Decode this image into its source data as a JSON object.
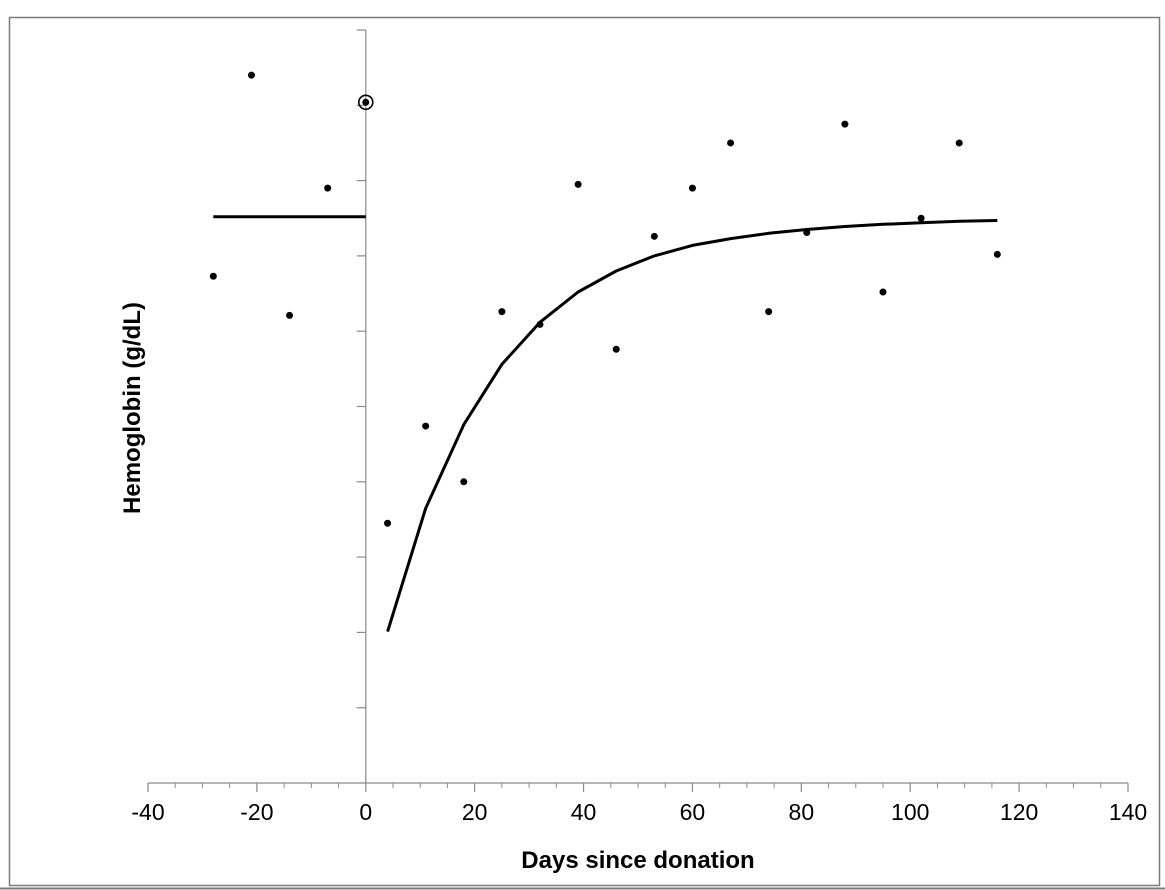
{
  "chart_data": {
    "type": "scatter",
    "title": "",
    "xlabel": "Days since donation",
    "ylabel": "Hemoglobin (g/dL)",
    "xlim": [
      -40,
      140
    ],
    "x_ticks": [
      -40,
      -20,
      0,
      20,
      40,
      60,
      80,
      100,
      120,
      140
    ],
    "y_tick_labels_shown": false,
    "y_range_relative": [
      0,
      1
    ],
    "grid": false,
    "legend": "none",
    "series": [
      {
        "kind": "points",
        "points": [
          {
            "x": -21,
            "y": 0.94
          },
          {
            "x": -28,
            "y": 0.673
          },
          {
            "x": -14,
            "y": 0.621
          },
          {
            "x": -7,
            "y": 0.79
          },
          {
            "x": 0,
            "y": 0.904,
            "circled": true
          },
          {
            "x": 4,
            "y": 0.345
          },
          {
            "x": 11,
            "y": 0.474
          },
          {
            "x": 18,
            "y": 0.4
          },
          {
            "x": 25,
            "y": 0.626
          },
          {
            "x": 32,
            "y": 0.609
          },
          {
            "x": 39,
            "y": 0.795
          },
          {
            "x": 46,
            "y": 0.576
          },
          {
            "x": 53,
            "y": 0.726
          },
          {
            "x": 60,
            "y": 0.79
          },
          {
            "x": 67,
            "y": 0.85
          },
          {
            "x": 74,
            "y": 0.626
          },
          {
            "x": 81,
            "y": 0.731
          },
          {
            "x": 88,
            "y": 0.875
          },
          {
            "x": 95,
            "y": 0.652
          },
          {
            "x": 102,
            "y": 0.75
          },
          {
            "x": 109,
            "y": 0.85
          },
          {
            "x": 116,
            "y": 0.702
          }
        ]
      },
      {
        "kind": "baseline-line",
        "points": [
          {
            "x": -28,
            "y": 0.752
          },
          {
            "x": 0,
            "y": 0.752
          }
        ]
      },
      {
        "kind": "recovery-curve",
        "points": [
          {
            "x": 4,
            "y": 0.201
          },
          {
            "x": 11,
            "y": 0.365
          },
          {
            "x": 18,
            "y": 0.476
          },
          {
            "x": 25,
            "y": 0.556
          },
          {
            "x": 32,
            "y": 0.612
          },
          {
            "x": 39,
            "y": 0.652
          },
          {
            "x": 46,
            "y": 0.68
          },
          {
            "x": 53,
            "y": 0.7
          },
          {
            "x": 60,
            "y": 0.714
          },
          {
            "x": 67,
            "y": 0.723
          },
          {
            "x": 74,
            "y": 0.73
          },
          {
            "x": 81,
            "y": 0.735
          },
          {
            "x": 88,
            "y": 0.739
          },
          {
            "x": 95,
            "y": 0.742
          },
          {
            "x": 102,
            "y": 0.744
          },
          {
            "x": 109,
            "y": 0.746
          },
          {
            "x": 116,
            "y": 0.747
          }
        ]
      }
    ]
  }
}
